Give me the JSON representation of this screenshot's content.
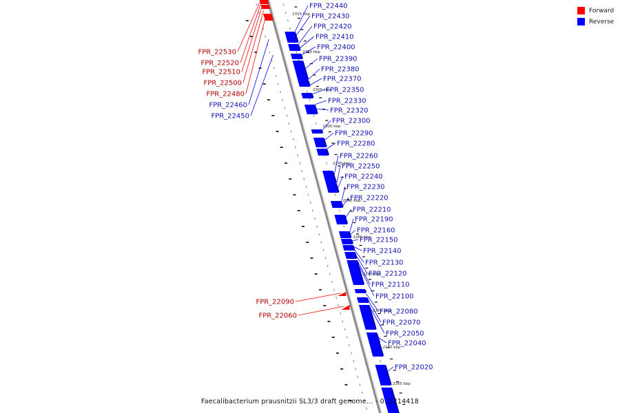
{
  "legend": {
    "forward_label": "Forward",
    "reverse_label": "Reverse",
    "forward_color": "#ff0000",
    "reverse_color": "#0000ff"
  },
  "caption": "Faecalibacterium prausnitzii SL3/3 draft genome... - 0..3214418",
  "colors": {
    "forward": "#ff0000",
    "forward_dark": "#c00000",
    "reverse": "#0000ff",
    "reverse_dark": "#0000b0",
    "backbone": "#8a8a8a",
    "forward_label": "#b00000",
    "reverse_label": "#1010b0",
    "tick": "#000000"
  },
  "scale_ticks": [
    "2315 kbp",
    "2310 kbp",
    "2305 kbp",
    "2300 kbp",
    "2295 kbp",
    "2290 kbp",
    "2285 kbp",
    "2280 kbp",
    "2275 kbp",
    "2270 kbp",
    "2265 kbp"
  ],
  "genes_reverse": [
    "FPR_22440",
    "FPR_22430",
    "FPR_22420",
    "FPR_22410",
    "FPR_22400",
    "FPR_22390",
    "FPR_22380",
    "FPR_22370",
    "FPR_22350",
    "FPR_22330",
    "FPR_22320",
    "FPR_22300",
    "FPR_22290",
    "FPR_22280",
    "FPR_22260",
    "FPR_22250",
    "FPR_22240",
    "FPR_22230",
    "FPR_22220",
    "FPR_22210",
    "FPR_22190",
    "FPR_22160",
    "FPR_22150",
    "FPR_22140",
    "FPR_22130",
    "FPR_22120",
    "FPR_22110",
    "FPR_22100",
    "FPR_22080",
    "FPR_22070",
    "FPR_22050",
    "FPR_22040",
    "FPR_22020"
  ],
  "genes_forward": [
    "FPR_22530",
    "FPR_22520",
    "FPR_22510",
    "FPR_22500",
    "FPR_22480",
    "FPR_22090",
    "FPR_22060"
  ],
  "genes_reverse_left": [
    "FPR_22460",
    "FPR_22450"
  ]
}
